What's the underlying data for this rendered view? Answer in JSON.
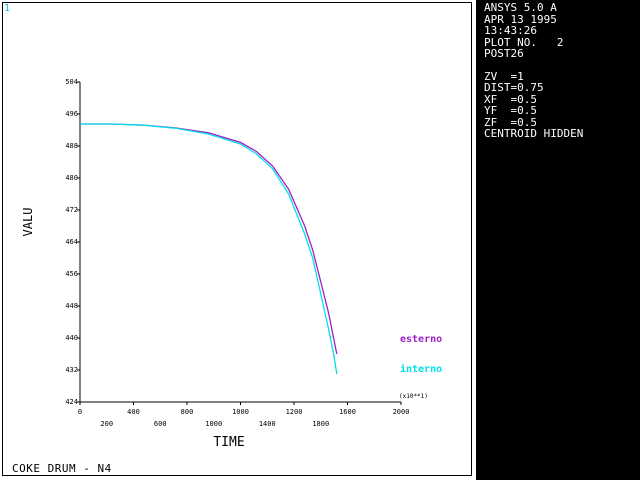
{
  "window_number": "1",
  "footer_title": "COKE DRUM - N4",
  "info_panel": {
    "lines_top": [
      "ANSYS 5.0 A",
      "APR 13 1995",
      "13:43:26",
      "PLOT NO.   2",
      "POST26"
    ],
    "lines_bottom": [
      "ZV  =1",
      "DIST=0.75",
      "XF  =0.5",
      "YF  =0.5",
      "ZF  =0.5",
      "CENTROID HIDDEN"
    ]
  },
  "colors": {
    "esterno": "#a020c8",
    "interno": "#00e0e8",
    "panel_bg": "#000000",
    "plot_bg": "#ffffff"
  },
  "chart_data": {
    "type": "line",
    "title": "",
    "xlabel": "TIME",
    "ylabel": "VALU",
    "x_multiplier_label": "(x10**1)",
    "xlim": [
      0,
      2000
    ],
    "ylim": [
      424,
      504
    ],
    "x_ticks_major": [
      "0",
      "400",
      "800",
      "1000",
      "1200",
      "1600",
      "2000"
    ],
    "x_ticks_minor": [
      "200",
      "600",
      "1000",
      "1400",
      "1800"
    ],
    "y_ticks": [
      "424",
      "432",
      "440",
      "448",
      "456",
      "464",
      "472",
      "480",
      "488",
      "496",
      "504"
    ],
    "grid": false,
    "legend": "right",
    "series": [
      {
        "name": "esterno",
        "x": [
          0,
          200,
          400,
          600,
          800,
          1000,
          1100,
          1200,
          1300,
          1400,
          1450,
          1500,
          1550,
          1580,
          1600
        ],
        "y": [
          493.5,
          493.5,
          493.2,
          492.5,
          491.3,
          488.9,
          486.6,
          483.0,
          477.2,
          468.0,
          462.0,
          454.0,
          446.0,
          440.0,
          436.0
        ]
      },
      {
        "name": "interno",
        "x": [
          0,
          200,
          400,
          600,
          800,
          1000,
          1100,
          1200,
          1300,
          1400,
          1450,
          1500,
          1550,
          1580,
          1600
        ],
        "y": [
          493.5,
          493.5,
          493.2,
          492.4,
          491.0,
          488.5,
          486.0,
          482.3,
          476.0,
          466.0,
          460.0,
          451.0,
          442.0,
          436.0,
          431.0
        ]
      }
    ]
  }
}
